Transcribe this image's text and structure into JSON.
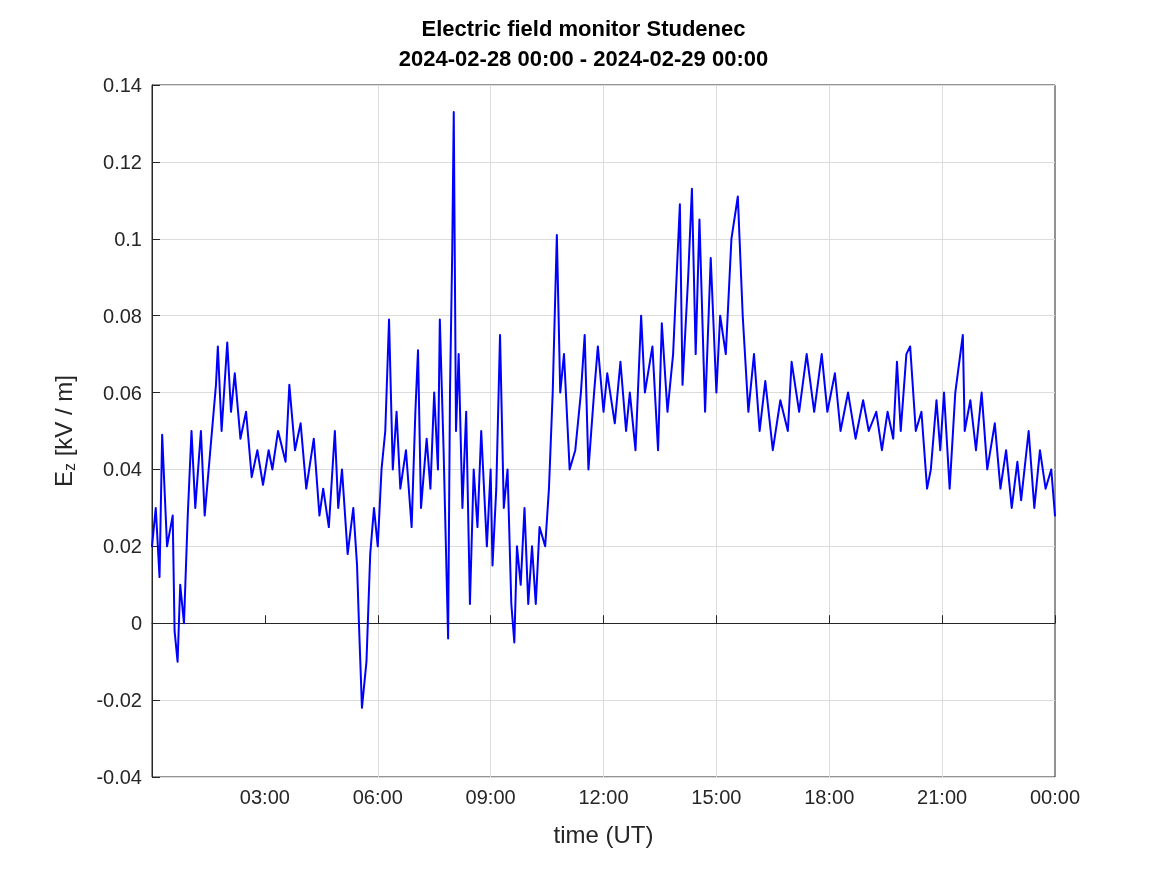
{
  "chart_data": {
    "type": "line",
    "title": "Electric field monitor Studenec\n2024-02-28 00:00 - 2024-02-29 00:00",
    "xlabel": "time (UT)",
    "ylabel": "E$_{z}$ [kV / m]",
    "xlim": [
      0,
      24
    ],
    "xticks": [
      {
        "value": 3,
        "label": "03:00"
      },
      {
        "value": 6,
        "label": "06:00"
      },
      {
        "value": 9,
        "label": "09:00"
      },
      {
        "value": 12,
        "label": "12:00"
      },
      {
        "value": 15,
        "label": "15:00"
      },
      {
        "value": 18,
        "label": "18:00"
      },
      {
        "value": 21,
        "label": "21:00"
      },
      {
        "value": 24,
        "label": "00:00"
      }
    ],
    "ylim": [
      -0.04,
      0.14
    ],
    "yticks": [
      -0.04,
      -0.02,
      0,
      0.02,
      0.04,
      0.06,
      0.08,
      0.1,
      0.12,
      0.14
    ],
    "grid": true,
    "marker": "none",
    "line_style": "solid",
    "series": [
      {
        "color": "#0000ff",
        "x": [
          0,
          0.1,
          0.2,
          0.27,
          0.4,
          0.55,
          0.6,
          0.68,
          0.75,
          0.85,
          0.95,
          1.05,
          1.15,
          1.3,
          1.4,
          1.55,
          1.7,
          1.75,
          1.85,
          2.0,
          2.1,
          2.2,
          2.35,
          2.5,
          2.65,
          2.8,
          2.95,
          3.1,
          3.2,
          3.35,
          3.55,
          3.65,
          3.8,
          3.95,
          4.1,
          4.3,
          4.45,
          4.55,
          4.7,
          4.86,
          4.95,
          5.05,
          5.2,
          5.35,
          5.45,
          5.5,
          5.58,
          5.7,
          5.8,
          5.9,
          6.0,
          6.1,
          6.2,
          6.3,
          6.4,
          6.5,
          6.6,
          6.75,
          6.9,
          7.0,
          7.07,
          7.15,
          7.3,
          7.4,
          7.5,
          7.6,
          7.65,
          7.75,
          7.87,
          7.92,
          7.98,
          8.02,
          8.08,
          8.15,
          8.25,
          8.35,
          8.45,
          8.55,
          8.65,
          8.75,
          8.9,
          9.0,
          9.05,
          9.15,
          9.25,
          9.35,
          9.45,
          9.55,
          9.63,
          9.7,
          9.8,
          9.9,
          10.0,
          10.1,
          10.2,
          10.3,
          10.45,
          10.55,
          10.65,
          10.76,
          10.85,
          10.95,
          11.1,
          11.25,
          11.4,
          11.5,
          11.6,
          11.75,
          11.85,
          12.0,
          12.1,
          12.3,
          12.45,
          12.6,
          12.7,
          12.85,
          13.0,
          13.1,
          13.3,
          13.45,
          13.55,
          13.7,
          13.85,
          14.03,
          14.1,
          14.25,
          14.35,
          14.45,
          14.55,
          14.7,
          14.85,
          15.0,
          15.1,
          15.25,
          15.4,
          15.57,
          15.7,
          15.85,
          16.0,
          16.15,
          16.3,
          16.5,
          16.7,
          16.9,
          17.0,
          17.2,
          17.4,
          17.6,
          17.8,
          17.95,
          18.15,
          18.3,
          18.5,
          18.7,
          18.9,
          19.05,
          19.25,
          19.4,
          19.55,
          19.7,
          19.8,
          19.9,
          20.05,
          20.15,
          20.3,
          20.45,
          20.6,
          20.7,
          20.85,
          20.95,
          21.05,
          21.2,
          21.35,
          21.55,
          21.6,
          21.75,
          21.9,
          22.05,
          22.2,
          22.4,
          22.55,
          22.7,
          22.85,
          23.0,
          23.1,
          23.3,
          23.45,
          23.6,
          23.75,
          23.9,
          24.0
        ],
        "values": [
          0.02,
          0.03,
          0.012,
          0.049,
          0.02,
          0.028,
          -0.002,
          -0.01,
          0.01,
          0.0,
          0.028,
          0.05,
          0.03,
          0.05,
          0.028,
          0.045,
          0.062,
          0.072,
          0.05,
          0.073,
          0.055,
          0.065,
          0.048,
          0.055,
          0.038,
          0.045,
          0.036,
          0.045,
          0.04,
          0.05,
          0.042,
          0.062,
          0.045,
          0.052,
          0.035,
          0.048,
          0.028,
          0.035,
          0.025,
          0.05,
          0.03,
          0.04,
          0.018,
          0.03,
          0.015,
          0.0,
          -0.022,
          -0.01,
          0.018,
          0.03,
          0.02,
          0.04,
          0.05,
          0.079,
          0.04,
          0.055,
          0.035,
          0.045,
          0.025,
          0.055,
          0.071,
          0.03,
          0.048,
          0.035,
          0.06,
          0.04,
          0.079,
          0.045,
          -0.004,
          0.06,
          0.097,
          0.133,
          0.05,
          0.07,
          0.03,
          0.055,
          0.005,
          0.04,
          0.025,
          0.05,
          0.02,
          0.04,
          0.015,
          0.035,
          0.075,
          0.03,
          0.04,
          0.005,
          -0.005,
          0.02,
          0.01,
          0.03,
          0.005,
          0.02,
          0.005,
          0.025,
          0.02,
          0.035,
          0.06,
          0.101,
          0.06,
          0.07,
          0.04,
          0.045,
          0.06,
          0.075,
          0.04,
          0.06,
          0.072,
          0.055,
          0.065,
          0.052,
          0.068,
          0.05,
          0.06,
          0.045,
          0.08,
          0.06,
          0.072,
          0.045,
          0.078,
          0.055,
          0.07,
          0.109,
          0.062,
          0.09,
          0.113,
          0.07,
          0.105,
          0.055,
          0.095,
          0.06,
          0.08,
          0.07,
          0.1,
          0.111,
          0.08,
          0.055,
          0.07,
          0.05,
          0.063,
          0.045,
          0.058,
          0.05,
          0.068,
          0.055,
          0.07,
          0.055,
          0.07,
          0.055,
          0.065,
          0.05,
          0.06,
          0.048,
          0.058,
          0.05,
          0.055,
          0.045,
          0.055,
          0.048,
          0.068,
          0.05,
          0.07,
          0.072,
          0.05,
          0.055,
          0.035,
          0.04,
          0.058,
          0.045,
          0.06,
          0.035,
          0.06,
          0.075,
          0.05,
          0.058,
          0.045,
          0.06,
          0.04,
          0.052,
          0.035,
          0.045,
          0.03,
          0.042,
          0.032,
          0.05,
          0.03,
          0.045,
          0.035,
          0.04,
          0.028
        ]
      }
    ]
  }
}
